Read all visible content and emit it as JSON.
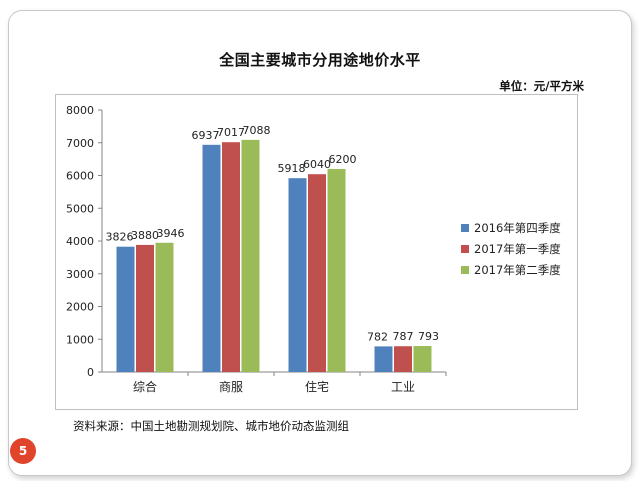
{
  "slide": {
    "title": "全国主要城市分用途地价水平",
    "unit_label": "单位：元/平方米",
    "source": "资料来源：中国土地勘测规划院、城市地价动态监测组",
    "page_number": "5",
    "page_number_color": "#e0452c"
  },
  "chart_data": {
    "type": "bar",
    "title": "",
    "xlabel": "",
    "ylabel": "",
    "categories": [
      "综合",
      "商服",
      "住宅",
      "工业"
    ],
    "ylim": [
      0,
      8000
    ],
    "yticks": [
      "0",
      "1000",
      "2000",
      "3000",
      "4000",
      "5000",
      "6000",
      "7000",
      "8000"
    ],
    "grid": false,
    "legend_position": "right",
    "data_labels": true,
    "series": [
      {
        "name": "2016年第四季度",
        "color": "#4f81bd",
        "values": [
          3826,
          6937,
          5918,
          782
        ]
      },
      {
        "name": "2017年第一季度",
        "color": "#c0504d",
        "values": [
          3880,
          7017,
          6040,
          787
        ]
      },
      {
        "name": "2017年第二季度",
        "color": "#9bbb59",
        "values": [
          3946,
          7088,
          6200,
          793
        ]
      }
    ]
  }
}
